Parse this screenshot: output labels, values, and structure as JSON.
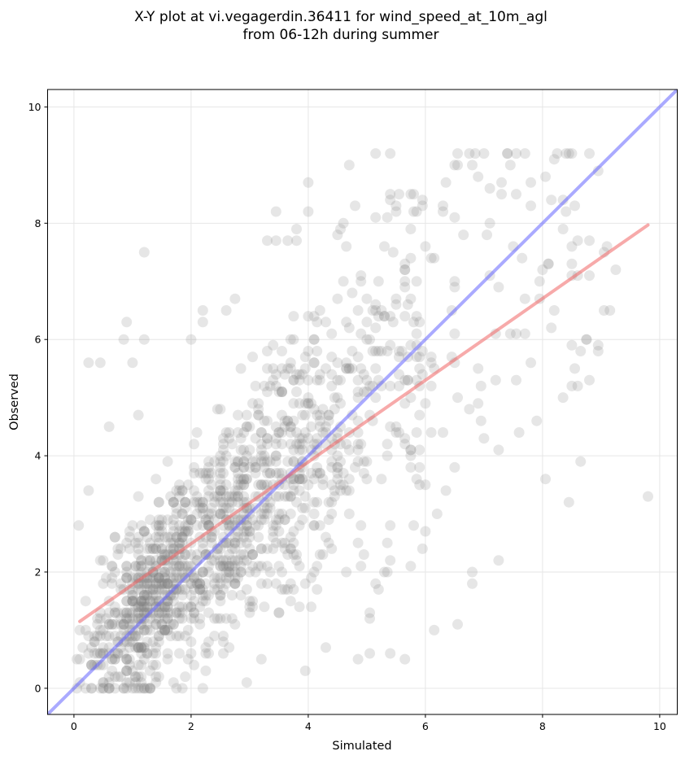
{
  "chart_data": {
    "type": "scatter",
    "title_line1": "X-Y plot at vi.vegagerdin.36411 for wind_speed_at_10m_agl",
    "title_line2": "from 06-12h during summer",
    "xlabel": "Simulated",
    "ylabel": "Observed",
    "xlim": [
      -0.45,
      10.3
    ],
    "ylim": [
      -0.45,
      10.3
    ],
    "xticks": [
      0,
      2,
      4,
      6,
      8,
      10
    ],
    "yticks": [
      0,
      2,
      4,
      6,
      8,
      10
    ],
    "grid": true,
    "point_color": "#808080",
    "one_to_one_line": {
      "color": "#6464ff",
      "from": [
        -0.45,
        -0.45
      ],
      "to": [
        10.3,
        10.3
      ]
    },
    "fit_line": {
      "color": "#f06464",
      "from": [
        0.1,
        1.15
      ],
      "to": [
        9.8,
        7.97
      ]
    },
    "n_generated_points": 1400,
    "series": [
      {
        "points": [
          [
            0.08,
            2.8
          ],
          [
            0.25,
            3.4
          ],
          [
            0.25,
            5.6
          ],
          [
            0.45,
            5.6
          ],
          [
            0.9,
            6.3
          ],
          [
            0.85,
            6.0
          ],
          [
            1.0,
            5.6
          ],
          [
            1.2,
            6.0
          ],
          [
            1.2,
            7.5
          ],
          [
            2.0,
            6.0
          ],
          [
            1.1,
            4.7
          ],
          [
            0.6,
            4.5
          ],
          [
            2.2,
            6.3
          ],
          [
            2.2,
            6.5
          ],
          [
            2.6,
            6.5
          ],
          [
            2.75,
            6.7
          ],
          [
            3.3,
            7.7
          ],
          [
            3.45,
            7.7
          ],
          [
            3.45,
            8.2
          ],
          [
            3.8,
            7.7
          ],
          [
            3.8,
            7.9
          ],
          [
            4.0,
            8.7
          ],
          [
            4.6,
            8.0
          ],
          [
            4.5,
            7.8
          ],
          [
            4.8,
            8.3
          ],
          [
            5.15,
            8.1
          ],
          [
            5.15,
            9.2
          ],
          [
            5.4,
            9.2
          ],
          [
            5.4,
            8.5
          ],
          [
            5.4,
            8.4
          ],
          [
            5.8,
            8.5
          ],
          [
            5.95,
            8.4
          ],
          [
            6.3,
            8.2
          ],
          [
            6.3,
            8.3
          ],
          [
            6.35,
            8.7
          ],
          [
            6.8,
            9.0
          ],
          [
            7.1,
            8.6
          ],
          [
            7.3,
            8.7
          ],
          [
            7.3,
            8.5
          ],
          [
            7.7,
            9.2
          ],
          [
            7.8,
            8.3
          ],
          [
            8.05,
            8.8
          ],
          [
            7.5,
            7.6
          ],
          [
            8.1,
            7.3
          ],
          [
            8.35,
            7.9
          ],
          [
            8.5,
            7.6
          ],
          [
            8.5,
            7.3
          ],
          [
            9.05,
            7.5
          ],
          [
            9.1,
            7.6
          ],
          [
            9.25,
            7.2
          ],
          [
            9.05,
            6.5
          ],
          [
            9.15,
            6.5
          ],
          [
            8.95,
            5.8
          ],
          [
            8.5,
            5.9
          ],
          [
            8.55,
            5.5
          ],
          [
            8.6,
            5.2
          ],
          [
            8.35,
            5.0
          ],
          [
            8.05,
            3.6
          ],
          [
            9.8,
            3.3
          ],
          [
            8.15,
            6.2
          ],
          [
            8.2,
            6.5
          ],
          [
            7.25,
            4.1
          ],
          [
            7.25,
            2.2
          ],
          [
            6.8,
            1.8
          ],
          [
            6.55,
            1.1
          ],
          [
            6.15,
            1.0
          ],
          [
            5.05,
            1.2
          ],
          [
            5.05,
            0.6
          ],
          [
            4.85,
            0.5
          ],
          [
            4.3,
            0.7
          ],
          [
            5.15,
            1.8
          ],
          [
            2.2,
            0.0
          ],
          [
            1.2,
            0.0
          ],
          [
            0.85,
            0.0
          ],
          [
            0.3,
            0.0
          ],
          [
            0.5,
            0.1
          ],
          [
            0.1,
            0.1
          ],
          [
            5.95,
            2.4
          ],
          [
            6.35,
            3.4
          ],
          [
            6.2,
            3.0
          ],
          [
            7.0,
            4.3
          ],
          [
            7.6,
            4.4
          ],
          [
            7.9,
            4.6
          ],
          [
            6.9,
            4.9
          ],
          [
            7.55,
            5.3
          ],
          [
            7.8,
            5.6
          ]
        ]
      }
    ]
  }
}
